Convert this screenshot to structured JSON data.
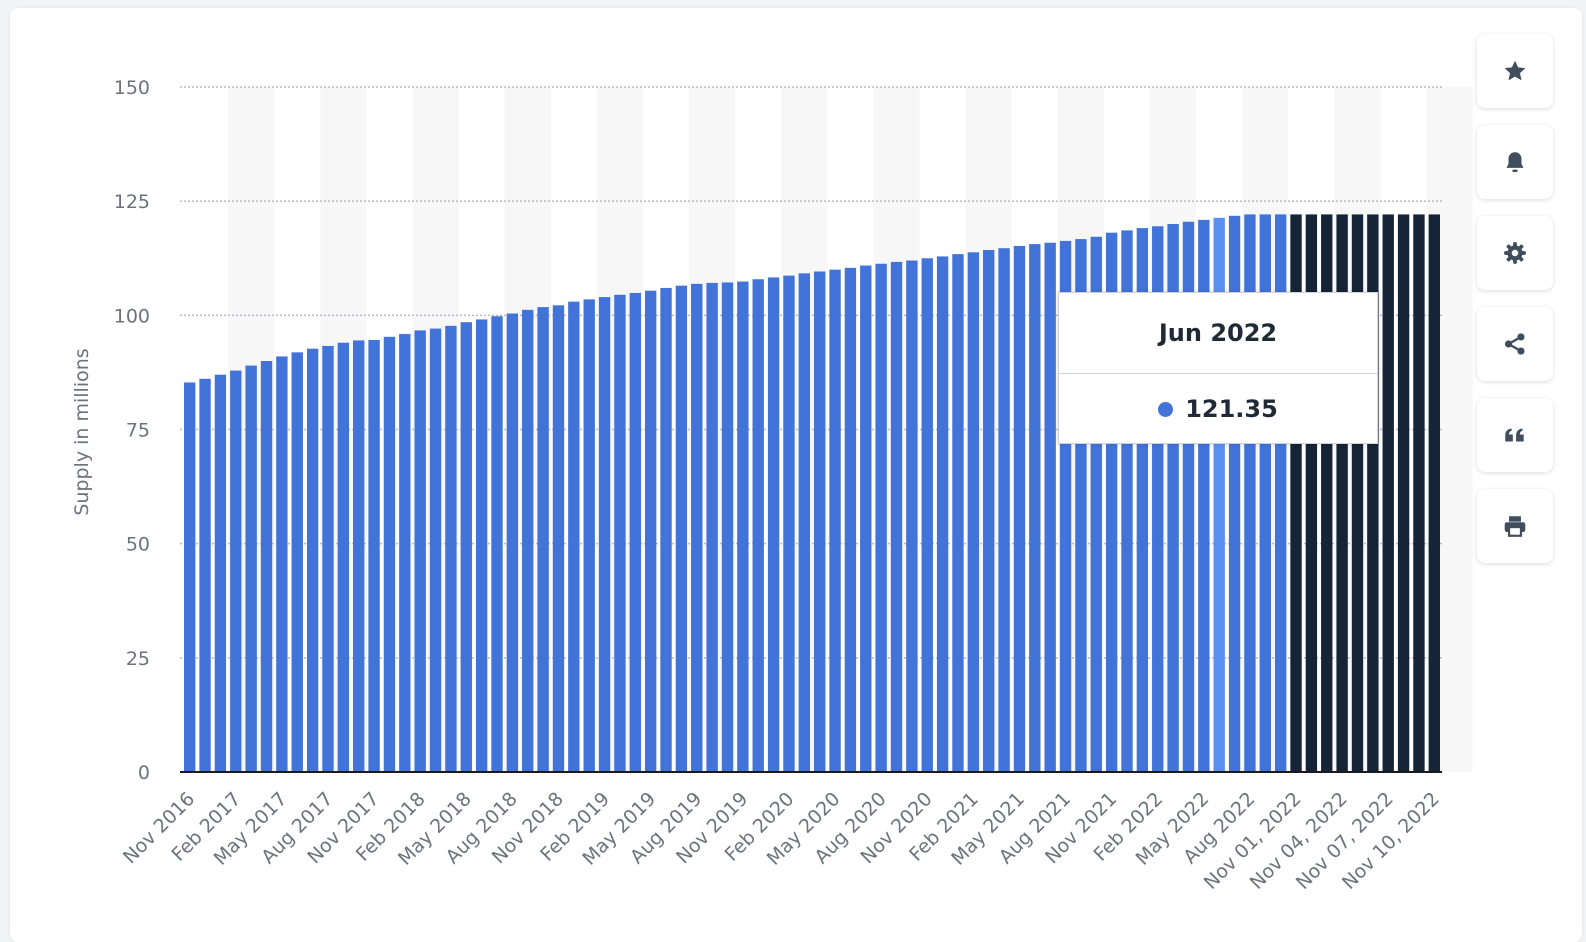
{
  "chart_data": {
    "type": "bar",
    "ylabel": "Supply in millions",
    "ylim": [
      0,
      150
    ],
    "yticks": [
      0,
      25,
      50,
      75,
      100,
      125,
      150
    ],
    "colors": {
      "monthly_bar": "#4273d9",
      "highlighted_bar": "#5b8ff0",
      "daily_bar": "#162438",
      "axis": "#1b1b1b",
      "grid": "#b8bcc2",
      "band": "#f7f7f8",
      "tick_label": "#6c737c"
    },
    "highlighted_category": "Jun 2022",
    "categories": [
      "Nov 2016",
      "Dec 2016",
      "Jan 2017",
      "Feb 2017",
      "Mar 2017",
      "Apr 2017",
      "May 2017",
      "Jun 2017",
      "Jul 2017",
      "Aug 2017",
      "Sep 2017",
      "Oct 2017",
      "Nov 2017",
      "Dec 2017",
      "Jan 2018",
      "Feb 2018",
      "Mar 2018",
      "Apr 2018",
      "May 2018",
      "Jun 2018",
      "Jul 2018",
      "Aug 2018",
      "Sep 2018",
      "Oct 2018",
      "Nov 2018",
      "Dec 2018",
      "Jan 2019",
      "Feb 2019",
      "Mar 2019",
      "Apr 2019",
      "May 2019",
      "Jun 2019",
      "Jul 2019",
      "Aug 2019",
      "Sep 2019",
      "Oct 2019",
      "Nov 2019",
      "Dec 2019",
      "Jan 2020",
      "Feb 2020",
      "Mar 2020",
      "Apr 2020",
      "May 2020",
      "Jun 2020",
      "Jul 2020",
      "Aug 2020",
      "Sep 2020",
      "Oct 2020",
      "Nov 2020",
      "Dec 2020",
      "Jan 2021",
      "Feb 2021",
      "Mar 2021",
      "Apr 2021",
      "May 2021",
      "Jun 2021",
      "Jul 2021",
      "Aug 2021",
      "Sep 2021",
      "Oct 2021",
      "Nov 2021",
      "Dec 2021",
      "Jan 2022",
      "Feb 2022",
      "Mar 2022",
      "Apr 2022",
      "May 2022",
      "Jun 2022",
      "Jul 2022",
      "Aug 2022",
      "Sep 2022",
      "Oct 2022",
      "Nov 01, 2022",
      "Nov 02, 2022",
      "Nov 03, 2022",
      "Nov 04, 2022",
      "Nov 05, 2022",
      "Nov 06, 2022",
      "Nov 07, 2022",
      "Nov 08, 2022",
      "Nov 09, 2022",
      "Nov 10, 2022"
    ],
    "daily_from_index": 72,
    "values": [
      85.3,
      86.1,
      87.0,
      87.9,
      89.0,
      90.0,
      91.0,
      91.9,
      92.7,
      93.3,
      94.0,
      94.5,
      94.6,
      95.3,
      95.9,
      96.7,
      97.1,
      97.7,
      98.5,
      99.1,
      99.8,
      100.4,
      101.2,
      101.8,
      102.2,
      103.0,
      103.5,
      104.0,
      104.5,
      104.9,
      105.4,
      106.0,
      106.5,
      106.9,
      107.1,
      107.2,
      107.4,
      107.9,
      108.3,
      108.7,
      109.2,
      109.6,
      110.0,
      110.4,
      110.9,
      111.3,
      111.7,
      112.0,
      112.5,
      112.9,
      113.4,
      113.8,
      114.3,
      114.7,
      115.2,
      115.6,
      115.9,
      116.3,
      116.7,
      117.2,
      118.1,
      118.6,
      119.1,
      119.5,
      120.0,
      120.5,
      120.9,
      121.35,
      121.8,
      122.1,
      122.1,
      122.1,
      122.1,
      122.1,
      122.1,
      122.1,
      122.1,
      122.1,
      122.1,
      122.1,
      122.1,
      122.1
    ],
    "xtick_labels": [
      "Nov 2016",
      "Feb 2017",
      "May 2017",
      "Aug 2017",
      "Nov 2017",
      "Feb 2018",
      "May 2018",
      "Aug 2018",
      "Nov 2018",
      "Feb 2019",
      "May 2019",
      "Aug 2019",
      "Nov 2019",
      "Feb 2020",
      "May 2020",
      "Aug 2020",
      "Nov 2020",
      "Feb 2021",
      "May 2021",
      "Aug 2021",
      "Nov 2021",
      "Feb 2022",
      "May 2022",
      "Aug 2022",
      "Nov 01, 2022",
      "Nov 04, 2022",
      "Nov 07, 2022",
      "Nov 10, 2022"
    ]
  },
  "tooltip": {
    "title": "Jun 2022",
    "value": "121.35",
    "dot_color": "#4273d9"
  },
  "toolbar": {
    "icon_color": "#3f4d5c",
    "buttons": [
      {
        "icon": "star-icon"
      },
      {
        "icon": "bell-icon"
      },
      {
        "icon": "gear-icon"
      },
      {
        "icon": "share-icon"
      },
      {
        "icon": "quote-icon"
      },
      {
        "icon": "printer-icon"
      }
    ]
  }
}
